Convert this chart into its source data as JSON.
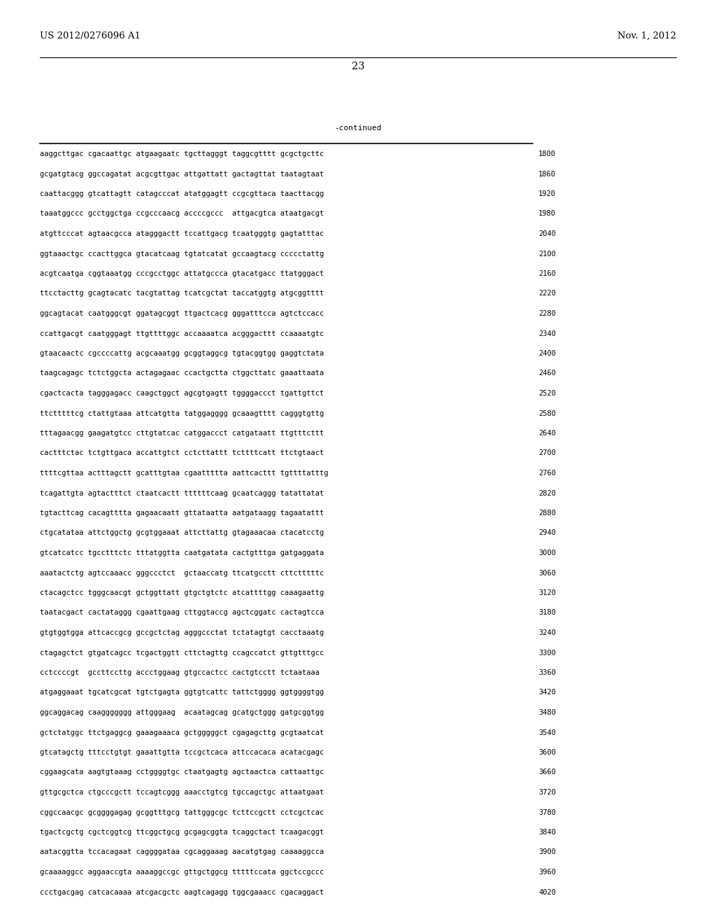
{
  "header_left": "US 2012/0276096 A1",
  "header_right": "Nov. 1, 2012",
  "page_number": "23",
  "continued_label": "-continued",
  "bg_color": "#ffffff",
  "text_color": "#000000",
  "font_size_header": 9.5,
  "font_size_page": 10.5,
  "font_size_body": 7.5,
  "sequence_lines": [
    [
      "aaggcttgac cgacaattgc atgaagaatc tgcttagggt taggcgtttt gcgctgcttc",
      "1800"
    ],
    [
      "gcgatgtacg ggccagatat acgcgttgac attgattatt gactagttat taatagtaat",
      "1860"
    ],
    [
      "caattacggg gtcattagtt catagcccat atatggagtt ccgcgttaca taacttacgg",
      "1920"
    ],
    [
      "taaatggccc gcctggctga ccgcccaacg accccgccc  attgacgtca ataatgacgt",
      "1980"
    ],
    [
      "atgttcccat agtaacgcca atagggactt tccattgacg tcaatgggtg gagtatttac",
      "2040"
    ],
    [
      "ggtaaactgc ccacttggca gtacatcaag tgtatcatat gccaagtacg ccccctattg",
      "2100"
    ],
    [
      "acgtcaatga cggtaaatgg cccgcctggc attatgccca gtacatgacc ttatgggact",
      "2160"
    ],
    [
      "ttcctacttg gcagtacatc tacgtattag tcatcgctat taccatggtg atgcggtttt",
      "2220"
    ],
    [
      "ggcagtacat caatgggcgt ggatagcggt ttgactcacg gggatttcca agtctccacc",
      "2280"
    ],
    [
      "ccattgacgt caatgggagt ttgttttggc accaaaatca acgggacttt ccaaaatgtc",
      "2340"
    ],
    [
      "gtaacaactc cgccccattg acgcaaatgg gcggtaggcg tgtacggtgg gaggtctata",
      "2400"
    ],
    [
      "taagcagagc tctctggcta actagagaac ccactgctta ctggcttatc gaaattaata",
      "2460"
    ],
    [
      "cgactcacta tagggagacc caagctggct agcgtgagtt tggggaccct tgattgttct",
      "2520"
    ],
    [
      "ttctttttcg ctattgtaaa attcatgtta tatggagggg gcaaagtttt cagggtgttg",
      "2580"
    ],
    [
      "tttagaacgg gaagatgtcc cttgtatcac catggaccct catgataatt ttgtttcttt",
      "2640"
    ],
    [
      "cactttctac tctgttgaca accattgtct cctcttattt tcttttcatt ttctgtaact",
      "2700"
    ],
    [
      "ttttcgttaa actttagctt gcatttgtaa cgaattttta aattcacttt tgttttatttg",
      "2760"
    ],
    [
      "tcagattgta agtactttct ctaatcactt ttttttcaag gcaatcaggg tatattatat",
      "2820"
    ],
    [
      "tgtacttcag cacagtttta gagaacaatt gttataatta aatgataagg tagaatattt",
      "2880"
    ],
    [
      "ctgcatataa attctggctg gcgtggaaat attcttattg gtagaaacaa ctacatcctg",
      "2940"
    ],
    [
      "gtcatcatcc tgcctttctc tttatggtta caatgatata cactgtttga gatgaggata",
      "3000"
    ],
    [
      "aaatactctg agtccaaacc gggccctct  gctaaccatg ttcatgcctt cttctttttc",
      "3060"
    ],
    [
      "ctacagctcc tgggcaacgt gctggttatt gtgctgtctc atcattttgg caaagaattg",
      "3120"
    ],
    [
      "taatacgact cactataggg cgaattgaag cttggtaccg agctcggatc cactagtcca",
      "3180"
    ],
    [
      "gtgtggtgga attcaccgcg gccgctctag agggccctat tctatagtgt cacctaaatg",
      "3240"
    ],
    [
      "ctagagctct gtgatcagcc tcgactggtt cttctagttg ccagccatct gttgtttgcc",
      "3300"
    ],
    [
      "cctccccgt  gccttccttg accctggaag gtgccactcc cactgtcctt tctaataaa",
      "3360"
    ],
    [
      "atgaggaaat tgcatcgcat tgtctgagta ggtgtcattc tattctgggg ggtggggtgg",
      "3420"
    ],
    [
      "ggcaggacag caaggggggg attgggaag  acaatagcag gcatgctggg gatgcggtgg",
      "3480"
    ],
    [
      "gctctatggc ttctgaggcg gaaagaaaca gctgggggct cgagagcttg gcgtaatcat",
      "3540"
    ],
    [
      "gtcatagctg tttcctgtgt gaaattgtta tccgctcaca attccacaca acatacgagc",
      "3600"
    ],
    [
      "cggaagcata aagtgtaaag cctggggtgc ctaatgagtg agctaactca cattaattgc",
      "3660"
    ],
    [
      "gttgcgctca ctgcccgctt tccagtcggg aaacctgtcg tgccagctgc attaatgaat",
      "3720"
    ],
    [
      "cggccaacgc gcggggagag gcggtttgcg tattgggcgc tcttccgctt cctcgctcac",
      "3780"
    ],
    [
      "tgactcgctg cgctcggtcg ttcggctgcg gcgagcggta tcaggctact tcaagacggt",
      "3840"
    ],
    [
      "aatacggtta tccacagaat caggggataa cgcaggaaag aacatgtgag caaaaggcca",
      "3900"
    ],
    [
      "gcaaaaggcc aggaaccgta aaaaggccgc gttgctggcg tttttccata ggctccgccc",
      "3960"
    ],
    [
      "ccctgacgag catcacaaaa atcgacgctc aagtcagagg tggcgaaacc cgacaggact",
      "4020"
    ]
  ]
}
